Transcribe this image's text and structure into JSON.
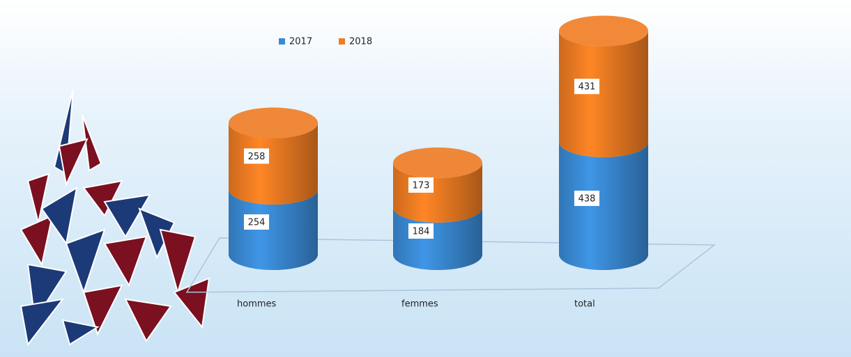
{
  "chart_data": {
    "type": "bar3d-stacked",
    "categories": [
      "hommes",
      "femmes",
      "total"
    ],
    "series": [
      {
        "name": "2017",
        "color": "#3a8bd6",
        "values": [
          254,
          184,
          438
        ]
      },
      {
        "name": "2018",
        "color": "#f07c22",
        "values": [
          258,
          173,
          431
        ]
      }
    ]
  }
}
